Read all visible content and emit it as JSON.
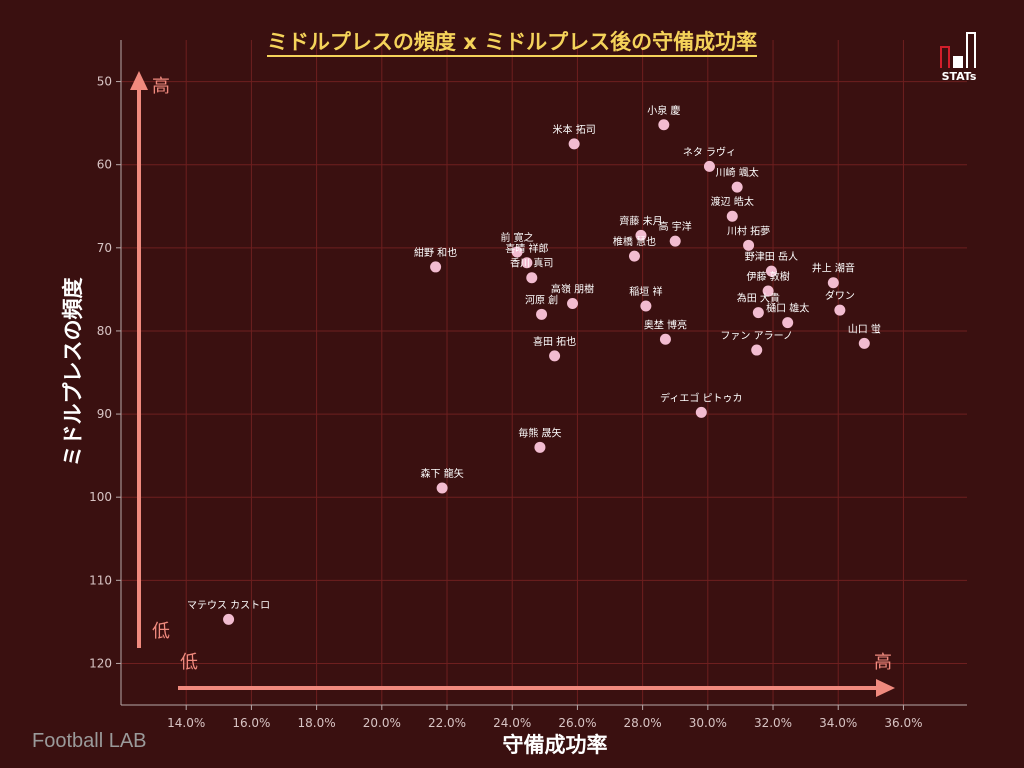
{
  "title": "ミドルプレスの頻度 x ミドルプレス後の守備成功率",
  "watermark": "Football LAB",
  "logo_text": "STATs",
  "colors": {
    "background": "#3a1010",
    "grid": "#6e1f1f",
    "point": "#f2bcd0",
    "arrow": "#f08a7e",
    "title": "#f5d35a",
    "axis_text": "#d8c4c4"
  },
  "chart_data": {
    "type": "scatter",
    "xlabel": "守備成功率",
    "ylabel": "ミドルプレスの頻度",
    "xlim": [
      0.12,
      0.3795
    ],
    "ylim": [
      45,
      125
    ],
    "y_inverted": true,
    "grid": true,
    "x_ticks": [
      "14.0%",
      "16.0%",
      "18.0%",
      "20.0%",
      "22.0%",
      "24.0%",
      "26.0%",
      "28.0%",
      "30.0%",
      "32.0%",
      "34.0%",
      "36.0%"
    ],
    "x_tick_values": [
      0.14,
      0.16,
      0.18,
      0.2,
      0.22,
      0.24,
      0.26,
      0.28,
      0.3,
      0.32,
      0.34,
      0.36
    ],
    "y_ticks": [
      "50",
      "60",
      "70",
      "80",
      "90",
      "100",
      "110",
      "120"
    ],
    "y_tick_values": [
      50,
      60,
      70,
      80,
      90,
      100,
      110,
      120
    ],
    "y_arrow_high": "高",
    "y_arrow_low": "低",
    "x_arrow_low": "低",
    "x_arrow_high": "高",
    "points": [
      {
        "name": "小泉 慶",
        "x": 0.2865,
        "y": 55.2
      },
      {
        "name": "米本 拓司",
        "x": 0.259,
        "y": 57.5
      },
      {
        "name": "ネタ ラヴィ",
        "x": 0.3005,
        "y": 60.2
      },
      {
        "name": "川崎 颯太",
        "x": 0.309,
        "y": 62.7
      },
      {
        "name": "渡辺 皓太",
        "x": 0.3075,
        "y": 66.2
      },
      {
        "name": "齊藤 未月",
        "x": 0.2795,
        "y": 68.5
      },
      {
        "name": "高 宇洋",
        "x": 0.29,
        "y": 69.2
      },
      {
        "name": "椎橋 慧也",
        "x": 0.2775,
        "y": 71.0
      },
      {
        "name": "川村 拓夢",
        "x": 0.3125,
        "y": 69.7
      },
      {
        "name": "紺野 和也",
        "x": 0.2165,
        "y": 72.3
      },
      {
        "name": "前 寛之",
        "x": 0.2415,
        "y": 70.5
      },
      {
        "name": "喜晴 祥郎",
        "x": 0.2445,
        "y": 71.8
      },
      {
        "name": "香川 真司",
        "x": 0.246,
        "y": 73.6
      },
      {
        "name": "野津田 岳人",
        "x": 0.3195,
        "y": 72.8
      },
      {
        "name": "井上 潮音",
        "x": 0.3385,
        "y": 74.2
      },
      {
        "name": "伊藤 敦樹",
        "x": 0.3185,
        "y": 75.2
      },
      {
        "name": "高嶺 朋樹",
        "x": 0.2585,
        "y": 76.7
      },
      {
        "name": "稲垣 祥",
        "x": 0.281,
        "y": 77.0
      },
      {
        "name": "為田 大貴",
        "x": 0.3155,
        "y": 77.8
      },
      {
        "name": "樋口 雄太",
        "x": 0.3245,
        "y": 79.0
      },
      {
        "name": "ダワン",
        "x": 0.3405,
        "y": 77.5
      },
      {
        "name": "河原 創",
        "x": 0.249,
        "y": 78.0
      },
      {
        "name": "奥埜 博亮",
        "x": 0.287,
        "y": 81.0
      },
      {
        "name": "ファン アラーノ",
        "x": 0.315,
        "y": 82.3
      },
      {
        "name": "山口 蛍",
        "x": 0.348,
        "y": 81.5
      },
      {
        "name": "喜田 拓也",
        "x": 0.253,
        "y": 83.0
      },
      {
        "name": "ディエゴ ピトゥカ",
        "x": 0.298,
        "y": 89.8
      },
      {
        "name": "毎熊 晟矢",
        "x": 0.2485,
        "y": 94.0
      },
      {
        "name": "森下 龍矢",
        "x": 0.2185,
        "y": 98.9
      },
      {
        "name": "マテウス カストロ",
        "x": 0.153,
        "y": 114.7
      }
    ]
  }
}
